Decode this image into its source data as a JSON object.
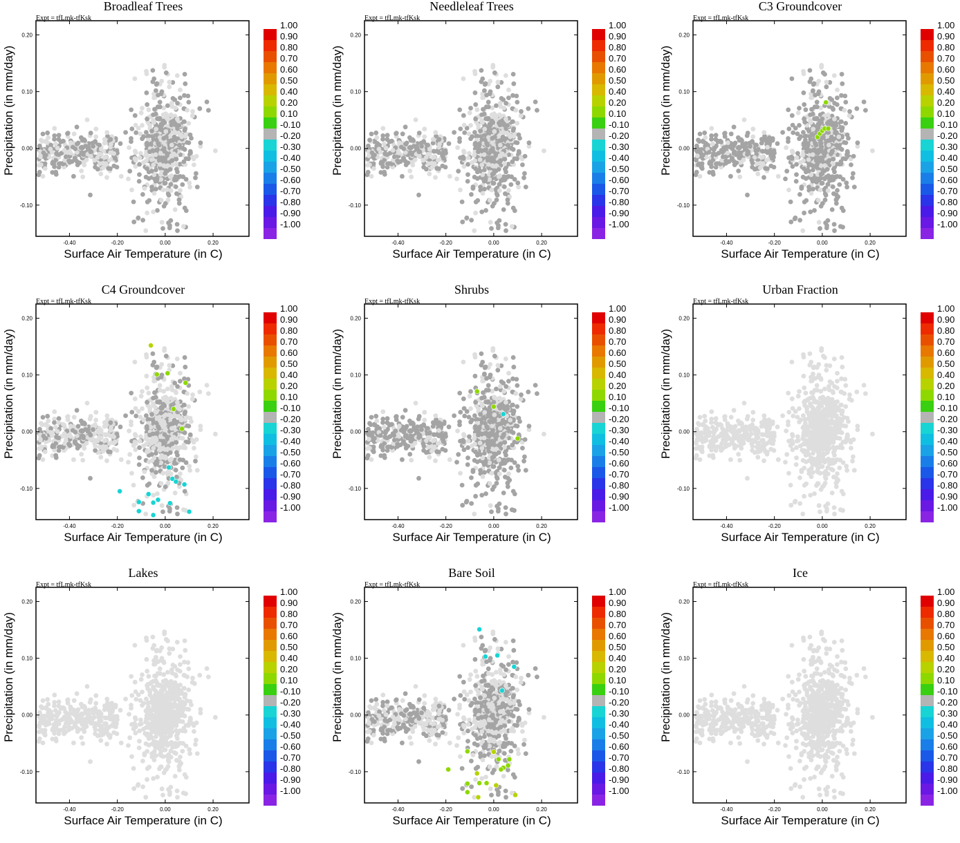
{
  "experiment_label": "Expt = tfLmk-tfKsk",
  "x_axis_label": "Surface Air Temperature (in C)",
  "y_axis_label": "Precipitation (in mm/day)",
  "colorbar": {
    "labels": [
      "1.00",
      "0.90",
      "0.80",
      "0.70",
      "0.60",
      "0.50",
      "0.40",
      "0.20",
      "0.10",
      "-0.10",
      "-0.20",
      "-0.30",
      "-0.40",
      "-0.50",
      "-0.60",
      "-0.70",
      "-0.80",
      "-0.90",
      "-1.00"
    ],
    "colors": [
      "#e00000",
      "#ee2a00",
      "#e85000",
      "#e87800",
      "#e09a00",
      "#d8b800",
      "#b8d200",
      "#8ed800",
      "#38d010",
      "#b4b4b4",
      "#18d4d4",
      "#10bee2",
      "#1aa2e6",
      "#1a7ee8",
      "#1a58e8",
      "#2a34e8",
      "#4a1ae8",
      "#6a18e4",
      "#8a24e4"
    ]
  },
  "chart_data": [
    {
      "type": "scatter",
      "title": "Broadleaf Trees",
      "xlim": [
        -0.54,
        0.35
      ],
      "ylim": [
        -0.155,
        0.225
      ],
      "xticks": [
        "-0.40",
        "-0.20",
        "0.00",
        "0.20"
      ],
      "yticks": [
        "-0.10",
        "0.00",
        "0.10",
        "0.20"
      ],
      "active_fraction": 0.55,
      "highlights": []
    },
    {
      "type": "scatter",
      "title": "Needleleaf Trees",
      "xlim": [
        -0.54,
        0.35
      ],
      "ylim": [
        -0.155,
        0.225
      ],
      "xticks": [
        "-0.40",
        "-0.20",
        "0.00",
        "0.20"
      ],
      "yticks": [
        "-0.10",
        "0.00",
        "0.10",
        "0.20"
      ],
      "active_fraction": 0.6,
      "highlights": []
    },
    {
      "type": "scatter",
      "title": "C3 Groundcover",
      "xlim": [
        -0.54,
        0.35
      ],
      "ylim": [
        -0.155,
        0.225
      ],
      "xticks": [
        "-0.40",
        "-0.20",
        "0.00",
        "0.20"
      ],
      "yticks": [
        "-0.10",
        "0.00",
        "0.10",
        "0.20"
      ],
      "active_fraction": 0.75,
      "highlights": [
        {
          "x": 0.015,
          "y": 0.081,
          "v": 0.15
        },
        {
          "x": -0.02,
          "y": 0.02,
          "v": 0.15
        },
        {
          "x": -0.01,
          "y": 0.026,
          "v": 0.15
        },
        {
          "x": 0.0,
          "y": 0.031,
          "v": 0.15
        },
        {
          "x": 0.01,
          "y": 0.035,
          "v": 0.15
        },
        {
          "x": 0.025,
          "y": 0.035,
          "v": 0.15
        }
      ]
    },
    {
      "type": "scatter",
      "title": "C4 Groundcover",
      "xlim": [
        -0.54,
        0.35
      ],
      "ylim": [
        -0.155,
        0.225
      ],
      "xticks": [
        "-0.40",
        "-0.20",
        "0.00",
        "0.20"
      ],
      "yticks": [
        "-0.10",
        "0.00",
        "0.10",
        "0.20"
      ],
      "active_fraction": 0.4,
      "highlights": [
        {
          "x": -0.06,
          "y": 0.152,
          "v": 0.3
        },
        {
          "x": -0.035,
          "y": 0.101,
          "v": 0.15
        },
        {
          "x": 0.01,
          "y": 0.103,
          "v": 0.15
        },
        {
          "x": 0.085,
          "y": 0.086,
          "v": 0.15
        },
        {
          "x": 0.035,
          "y": 0.04,
          "v": 0.15
        },
        {
          "x": 0.07,
          "y": 0.005,
          "v": 0.15
        },
        {
          "x": -0.19,
          "y": -0.105,
          "v": -0.25
        },
        {
          "x": -0.11,
          "y": -0.124,
          "v": -0.25
        },
        {
          "x": -0.11,
          "y": -0.14,
          "v": -0.25
        },
        {
          "x": -0.07,
          "y": -0.11,
          "v": -0.25
        },
        {
          "x": -0.05,
          "y": -0.125,
          "v": -0.25
        },
        {
          "x": -0.03,
          "y": -0.12,
          "v": -0.25
        },
        {
          "x": 0.02,
          "y": -0.126,
          "v": -0.25
        },
        {
          "x": -0.05,
          "y": -0.147,
          "v": -0.25
        },
        {
          "x": 0.08,
          "y": -0.093,
          "v": -0.25
        },
        {
          "x": 0.1,
          "y": -0.141,
          "v": -0.25
        },
        {
          "x": 0.03,
          "y": -0.083,
          "v": -0.25
        },
        {
          "x": 0.015,
          "y": -0.063,
          "v": -0.25
        },
        {
          "x": 0.045,
          "y": -0.088,
          "v": -0.25
        }
      ]
    },
    {
      "type": "scatter",
      "title": "Shrubs",
      "xlim": [
        -0.54,
        0.35
      ],
      "ylim": [
        -0.155,
        0.225
      ],
      "xticks": [
        "-0.40",
        "-0.20",
        "0.00",
        "0.20"
      ],
      "yticks": [
        "-0.10",
        "0.00",
        "0.10",
        "0.20"
      ],
      "active_fraction": 0.7,
      "highlights": [
        {
          "x": -0.07,
          "y": 0.071,
          "v": 0.15
        },
        {
          "x": 0.0,
          "y": 0.044,
          "v": 0.15
        },
        {
          "x": 0.1,
          "y": -0.012,
          "v": 0.15
        },
        {
          "x": 0.04,
          "y": 0.031,
          "v": -0.25
        }
      ]
    },
    {
      "type": "scatter",
      "title": "Urban Fraction",
      "xlim": [
        -0.54,
        0.35
      ],
      "ylim": [
        -0.155,
        0.225
      ],
      "xticks": [
        "-0.40",
        "-0.20",
        "0.00",
        "0.20"
      ],
      "yticks": [
        "-0.10",
        "0.00",
        "0.10",
        "0.20"
      ],
      "active_fraction": 0,
      "highlights": []
    },
    {
      "type": "scatter",
      "title": "Lakes",
      "xlim": [
        -0.54,
        0.35
      ],
      "ylim": [
        -0.155,
        0.225
      ],
      "xticks": [
        "-0.40",
        "-0.20",
        "0.00",
        "0.20"
      ],
      "yticks": [
        "-0.10",
        "0.00",
        "0.10",
        "0.20"
      ],
      "active_fraction": 0,
      "highlights": []
    },
    {
      "type": "scatter",
      "title": "Bare Soil",
      "xlim": [
        -0.54,
        0.35
      ],
      "ylim": [
        -0.155,
        0.225
      ],
      "xticks": [
        "-0.40",
        "-0.20",
        "0.00",
        "0.20"
      ],
      "yticks": [
        "-0.10",
        "0.00",
        "0.10",
        "0.20"
      ],
      "active_fraction": 0.5,
      "highlights": [
        {
          "x": -0.06,
          "y": 0.151,
          "v": -0.25
        },
        {
          "x": -0.035,
          "y": 0.103,
          "v": -0.25
        },
        {
          "x": 0.015,
          "y": 0.105,
          "v": -0.25
        },
        {
          "x": 0.085,
          "y": 0.085,
          "v": -0.25
        },
        {
          "x": 0.035,
          "y": 0.043,
          "v": -0.25
        },
        {
          "x": -0.11,
          "y": -0.064,
          "v": 0.15
        },
        {
          "x": -0.19,
          "y": -0.096,
          "v": 0.15
        },
        {
          "x": -0.07,
          "y": -0.103,
          "v": 0.3
        },
        {
          "x": -0.11,
          "y": -0.121,
          "v": 0.15
        },
        {
          "x": -0.11,
          "y": -0.136,
          "v": 0.15
        },
        {
          "x": -0.06,
          "y": -0.12,
          "v": 0.15
        },
        {
          "x": -0.03,
          "y": -0.12,
          "v": 0.15
        },
        {
          "x": 0.01,
          "y": -0.124,
          "v": 0.3
        },
        {
          "x": -0.065,
          "y": -0.145,
          "v": 0.3
        },
        {
          "x": 0.09,
          "y": -0.141,
          "v": 0.3
        },
        {
          "x": 0.02,
          "y": -0.078,
          "v": 0.15
        },
        {
          "x": 0.0,
          "y": -0.065,
          "v": 0.3
        },
        {
          "x": 0.04,
          "y": -0.093,
          "v": 0.15
        },
        {
          "x": 0.06,
          "y": -0.089,
          "v": 0.15
        },
        {
          "x": 0.065,
          "y": -0.078,
          "v": 0.15
        },
        {
          "x": 0.03,
          "y": -0.096,
          "v": 0.15
        }
      ]
    },
    {
      "type": "scatter",
      "title": "Ice",
      "xlim": [
        -0.54,
        0.35
      ],
      "ylim": [
        -0.155,
        0.225
      ],
      "xticks": [
        "-0.40",
        "-0.20",
        "0.00",
        "0.20"
      ],
      "yticks": [
        "-0.10",
        "0.00",
        "0.10",
        "0.20"
      ],
      "active_fraction": 0,
      "highlights": []
    }
  ]
}
